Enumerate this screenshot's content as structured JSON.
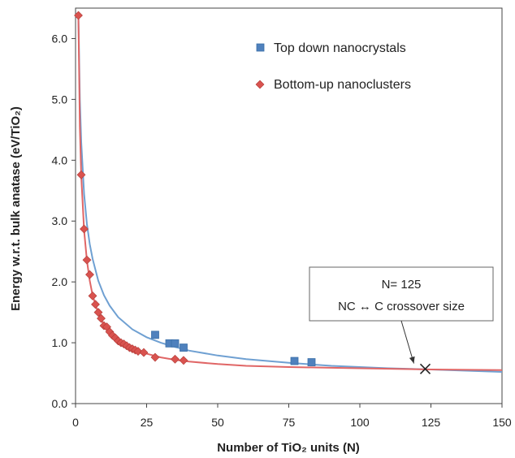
{
  "chart_data": {
    "type": "scatter",
    "xlabel": "Number of TiO₂ units (N)",
    "ylabel": "Energy w.r.t. bulk anatase (eV/TiO₂)",
    "xlim": [
      0,
      150
    ],
    "ylim": [
      0,
      6.5
    ],
    "x_ticks": [
      0,
      25,
      50,
      75,
      100,
      125,
      150
    ],
    "y_ticks": [
      0.0,
      1.0,
      2.0,
      3.0,
      4.0,
      5.0,
      6.0
    ],
    "x_tick_labels": [
      "0",
      "25",
      "50",
      "75",
      "100",
      "125",
      "150"
    ],
    "y_tick_labels": [
      "0.0",
      "1.0",
      "2.0",
      "3.0",
      "4.0",
      "5.0",
      "6.0"
    ],
    "grid": false,
    "legend_position": "top-right",
    "series": [
      {
        "name": "Top down nanocrystals",
        "marker": "square",
        "color": "#4f81bd",
        "points": [
          {
            "x": 28,
            "y": 1.13
          },
          {
            "x": 33,
            "y": 0.99
          },
          {
            "x": 35,
            "y": 0.99
          },
          {
            "x": 38,
            "y": 0.92
          },
          {
            "x": 77,
            "y": 0.7
          },
          {
            "x": 83,
            "y": 0.68
          }
        ]
      },
      {
        "name": "Bottom-up nanoclusters",
        "marker": "diamond",
        "color": "#d9534f",
        "points": [
          {
            "x": 1,
            "y": 6.38
          },
          {
            "x": 2,
            "y": 3.76
          },
          {
            "x": 3,
            "y": 2.87
          },
          {
            "x": 4,
            "y": 2.36
          },
          {
            "x": 5,
            "y": 2.12
          },
          {
            "x": 6,
            "y": 1.77
          },
          {
            "x": 7,
            "y": 1.63
          },
          {
            "x": 8,
            "y": 1.5
          },
          {
            "x": 9,
            "y": 1.4
          },
          {
            "x": 10,
            "y": 1.28
          },
          {
            "x": 11,
            "y": 1.26
          },
          {
            "x": 12,
            "y": 1.18
          },
          {
            "x": 13,
            "y": 1.12
          },
          {
            "x": 14,
            "y": 1.08
          },
          {
            "x": 15,
            "y": 1.03
          },
          {
            "x": 16,
            "y": 1.0
          },
          {
            "x": 17,
            "y": 0.98
          },
          {
            "x": 18,
            "y": 0.95
          },
          {
            "x": 19,
            "y": 0.92
          },
          {
            "x": 20,
            "y": 0.9
          },
          {
            "x": 21,
            "y": 0.88
          },
          {
            "x": 22,
            "y": 0.86
          },
          {
            "x": 24,
            "y": 0.84
          },
          {
            "x": 28,
            "y": 0.76
          },
          {
            "x": 35,
            "y": 0.73
          },
          {
            "x": 38,
            "y": 0.71
          }
        ]
      }
    ],
    "fit_curves": [
      {
        "color": "#6fa0d2",
        "points": [
          [
            1,
            6.38
          ],
          [
            1.5,
            5.0
          ],
          [
            2,
            4.3
          ],
          [
            3,
            3.45
          ],
          [
            4,
            2.95
          ],
          [
            5,
            2.62
          ],
          [
            6,
            2.38
          ],
          [
            8,
            2.02
          ],
          [
            10,
            1.78
          ],
          [
            12,
            1.61
          ],
          [
            15,
            1.42
          ],
          [
            20,
            1.22
          ],
          [
            25,
            1.09
          ],
          [
            30,
            1.0
          ],
          [
            35,
            0.93
          ],
          [
            40,
            0.87
          ],
          [
            50,
            0.79
          ],
          [
            60,
            0.73
          ],
          [
            75,
            0.67
          ],
          [
            90,
            0.62
          ],
          [
            110,
            0.58
          ],
          [
            125,
            0.56
          ],
          [
            150,
            0.52
          ]
        ]
      },
      {
        "color": "#e06666",
        "points": [
          [
            1,
            6.38
          ],
          [
            1.5,
            4.55
          ],
          [
            2,
            3.75
          ],
          [
            3,
            2.85
          ],
          [
            4,
            2.35
          ],
          [
            5,
            2.02
          ],
          [
            6,
            1.78
          ],
          [
            8,
            1.48
          ],
          [
            10,
            1.29
          ],
          [
            12,
            1.17
          ],
          [
            15,
            1.03
          ],
          [
            20,
            0.9
          ],
          [
            25,
            0.82
          ],
          [
            30,
            0.76
          ],
          [
            35,
            0.72
          ],
          [
            40,
            0.69
          ],
          [
            50,
            0.65
          ],
          [
            60,
            0.62
          ],
          [
            75,
            0.6
          ],
          [
            100,
            0.58
          ],
          [
            125,
            0.56
          ],
          [
            150,
            0.55
          ]
        ]
      }
    ],
    "crossover_point": {
      "x": 123,
      "y": 0.57
    },
    "annotation": {
      "line1": "N= 125",
      "line2": "NC ↔ C crossover size",
      "arrow_target": {
        "x": 119,
        "y": 0.66
      }
    }
  }
}
